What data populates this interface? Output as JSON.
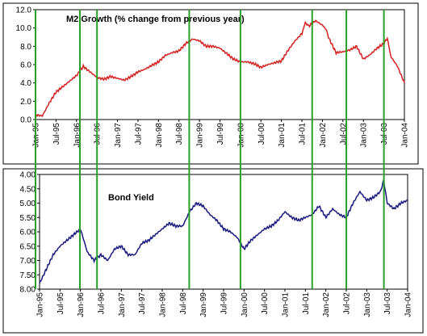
{
  "chart_data": [
    {
      "type": "line",
      "title": "M2 Growth (% change from previous year)",
      "xlabel": "",
      "ylabel": "",
      "x_ticks": [
        "Jan-95",
        "Jul-95",
        "Jan-96",
        "Jul-96",
        "Jan-97",
        "Jul-97",
        "Jan-98",
        "Jul-98",
        "Jan-99",
        "Jul-99",
        "Jan-00",
        "Jul-00",
        "Jan-01",
        "Jul-01",
        "Jan-02",
        "Jul-02",
        "Jan-03",
        "Jul-03",
        "Jan-04"
      ],
      "y_ticks": [
        "0.0",
        "2.0",
        "4.0",
        "6.0",
        "8.0",
        "10.0",
        "12.0"
      ],
      "ylim": [
        0,
        12
      ],
      "grid": false,
      "line_color": "#d42020",
      "series": [
        {
          "x": [
            "1995-01",
            "1995-03",
            "1995-05",
            "1995-07",
            "1995-09",
            "1995-11",
            "1996-01",
            "1996-03",
            "1996-05",
            "1996-07",
            "1996-09",
            "1996-11",
            "1997-01",
            "1997-03",
            "1997-05",
            "1997-07",
            "1997-09",
            "1997-11",
            "1998-01",
            "1998-03",
            "1998-05",
            "1998-07",
            "1998-09",
            "1998-11",
            "1999-01",
            "1999-03",
            "1999-05",
            "1999-07",
            "1999-09",
            "1999-11",
            "2000-01",
            "2000-03",
            "2000-05",
            "2000-07",
            "2000-09",
            "2000-11",
            "2001-01",
            "2001-03",
            "2001-05",
            "2001-07",
            "2001-08",
            "2001-09",
            "2001-11",
            "2002-01",
            "2002-02",
            "2002-03",
            "2002-05",
            "2002-07",
            "2002-09",
            "2002-11",
            "2003-01",
            "2003-03",
            "2003-05",
            "2003-07",
            "2003-08",
            "2003-09",
            "2003-11",
            "2004-01"
          ],
          "values": [
            0.5,
            0.4,
            1.8,
            3.0,
            3.6,
            4.2,
            4.8,
            5.8,
            5.2,
            4.6,
            4.4,
            4.7,
            4.5,
            4.3,
            4.7,
            5.2,
            5.5,
            5.9,
            6.3,
            7.0,
            7.3,
            7.5,
            8.3,
            8.8,
            8.6,
            8.0,
            8.0,
            7.8,
            7.2,
            6.6,
            6.3,
            6.3,
            6.1,
            5.7,
            6.0,
            6.2,
            6.4,
            7.6,
            8.6,
            9.4,
            10.6,
            10.2,
            10.8,
            10.3,
            9.9,
            8.8,
            7.3,
            7.4,
            7.6,
            8.0,
            6.6,
            7.1,
            7.8,
            8.3,
            8.9,
            6.9,
            5.8,
            4.0
          ]
        }
      ]
    },
    {
      "type": "line",
      "title": "Bond Yield",
      "xlabel": "",
      "ylabel": "",
      "x_ticks": [
        "Jan-95",
        "Jul-95",
        "Jan-96",
        "Jul-96",
        "Jan-97",
        "Jul-97",
        "Jan-98",
        "Jul-98",
        "Jan-99",
        "Jul-99",
        "Jan-00",
        "Jul-00",
        "Jan-01",
        "Jul-01",
        "Jan-02",
        "Jul-02",
        "Jan-03",
        "Jul-03",
        "Jan-04"
      ],
      "y_ticks": [
        "4.00",
        "4.50",
        "5.00",
        "5.50",
        "6.00",
        "6.50",
        "7.00",
        "7.50",
        "8.00"
      ],
      "ylim": [
        8.0,
        4.0
      ],
      "y_inverted": true,
      "grid": false,
      "line_color": "#1a1a80",
      "series": [
        {
          "x": [
            "1995-01",
            "1995-03",
            "1995-05",
            "1995-07",
            "1995-09",
            "1995-11",
            "1996-01",
            "1996-03",
            "1996-05",
            "1996-07",
            "1996-09",
            "1996-11",
            "1997-01",
            "1997-03",
            "1997-05",
            "1997-07",
            "1997-09",
            "1997-11",
            "1998-01",
            "1998-03",
            "1998-05",
            "1998-07",
            "1998-09",
            "1998-11",
            "1999-01",
            "1999-03",
            "1999-05",
            "1999-07",
            "1999-09",
            "1999-11",
            "2000-01",
            "2000-03",
            "2000-05",
            "2000-07",
            "2000-09",
            "2000-11",
            "2001-01",
            "2001-03",
            "2001-05",
            "2001-07",
            "2001-09",
            "2001-11",
            "2002-01",
            "2002-03",
            "2002-05",
            "2002-07",
            "2002-09",
            "2002-11",
            "2003-01",
            "2003-03",
            "2003-05",
            "2003-06",
            "2003-07",
            "2003-09",
            "2003-11",
            "2004-01"
          ],
          "values": [
            7.8,
            7.3,
            6.8,
            6.5,
            6.3,
            6.1,
            5.9,
            6.7,
            7.0,
            6.8,
            7.0,
            6.6,
            6.5,
            6.8,
            6.8,
            6.4,
            6.3,
            6.1,
            5.9,
            5.7,
            5.8,
            5.8,
            5.3,
            5.0,
            5.1,
            5.4,
            5.6,
            5.9,
            6.0,
            6.2,
            6.6,
            6.3,
            6.1,
            5.9,
            5.8,
            5.6,
            5.3,
            5.5,
            5.6,
            5.5,
            5.4,
            5.1,
            5.5,
            5.2,
            5.4,
            5.5,
            5.0,
            4.6,
            4.9,
            4.8,
            4.6,
            4.2,
            5.0,
            5.2,
            5.0,
            4.9
          ]
        }
      ]
    }
  ],
  "markers": [
    "1995-01",
    "1996-02",
    "1996-07",
    "1998-10",
    "2000-01",
    "2001-10",
    "2002-08",
    "2003-07"
  ]
}
